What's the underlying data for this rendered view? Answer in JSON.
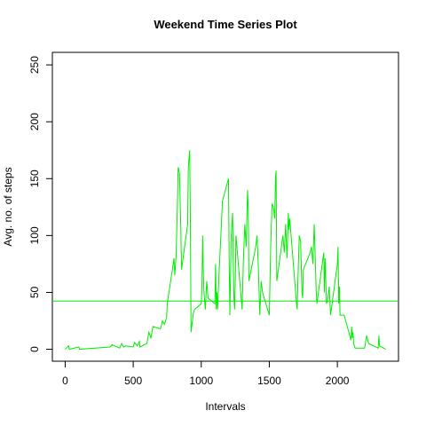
{
  "chart_data": {
    "type": "line",
    "title": "Weekend Time Series Plot",
    "x_label": "Intervals",
    "y_label": "Avg. no. of steps",
    "x": [
      0,
      25,
      30,
      100,
      105,
      330,
      345,
      400,
      415,
      430,
      445,
      500,
      510,
      530,
      545,
      550,
      600,
      615,
      630,
      645,
      700,
      715,
      730,
      745,
      750,
      800,
      805,
      815,
      825,
      830,
      840,
      850,
      855,
      900,
      905,
      915,
      920,
      925,
      930,
      940,
      950,
      1000,
      1005,
      1010,
      1015,
      1020,
      1030,
      1040,
      1050,
      1100,
      1105,
      1110,
      1115,
      1120,
      1130,
      1140,
      1150,
      1155,
      1200,
      1205,
      1210,
      1220,
      1230,
      1235,
      1240,
      1245,
      1250,
      1255,
      1300,
      1310,
      1320,
      1330,
      1340,
      1345,
      1350,
      1400,
      1410,
      1420,
      1430,
      1440,
      1450,
      1500,
      1510,
      1520,
      1530,
      1540,
      1545,
      1550,
      1555,
      1600,
      1610,
      1620,
      1630,
      1640,
      1645,
      1650,
      1700,
      1705,
      1710,
      1720,
      1730,
      1740,
      1745,
      1750,
      1800,
      1810,
      1820,
      1830,
      1840,
      1845,
      1850,
      1900,
      1905,
      1910,
      1920,
      1930,
      1940,
      1950,
      2000,
      2005,
      2010,
      2015,
      2020,
      2030,
      2040,
      2050,
      2100,
      2105,
      2110,
      2115,
      2120,
      2130,
      2200,
      2215,
      2230,
      2300,
      2305,
      2310,
      2355
    ],
    "series": [
      {
        "name": "steps",
        "color": "#00ee00",
        "values": [
          0,
          3,
          0,
          2,
          0,
          2,
          4,
          1,
          5,
          2,
          3,
          2,
          6,
          3,
          7,
          2,
          5,
          15,
          10,
          20,
          18,
          25,
          22,
          28,
          40,
          80,
          65,
          82,
          128,
          160,
          155,
          105,
          70,
          110,
          160,
          175,
          110,
          15,
          20,
          30,
          35,
          40,
          55,
          100,
          70,
          50,
          35,
          60,
          45,
          40,
          75,
          35,
          50,
          35,
          65,
          90,
          115,
          130,
          150,
          80,
          30,
          100,
          120,
          80,
          45,
          35,
          60,
          100,
          35,
          80,
          110,
          90,
          140,
          125,
          60,
          90,
          100,
          70,
          30,
          60,
          50,
          30,
          90,
          128,
          125,
          115,
          150,
          157,
          60,
          100,
          85,
          110,
          80,
          120,
          105,
          115,
          40,
          35,
          60,
          100,
          95,
          50,
          45,
          70,
          85,
          90,
          75,
          110,
          70,
          50,
          40,
          85,
          50,
          80,
          40,
          45,
          55,
          30,
          75,
          90,
          40,
          55,
          30,
          30,
          30,
          30,
          8,
          20,
          10,
          15,
          5,
          1,
          1,
          12,
          5,
          1,
          12,
          3,
          0
        ]
      }
    ],
    "reference_line": {
      "value": 42.4,
      "color": "#00ee00"
    },
    "xlim": [
      -94.2,
      2449.2
    ],
    "xticks": [
      0,
      500,
      1000,
      1500,
      2000
    ],
    "ylim": [
      -10.5,
      261
    ],
    "yticks": [
      0,
      50,
      100,
      150,
      200,
      250
    ]
  }
}
